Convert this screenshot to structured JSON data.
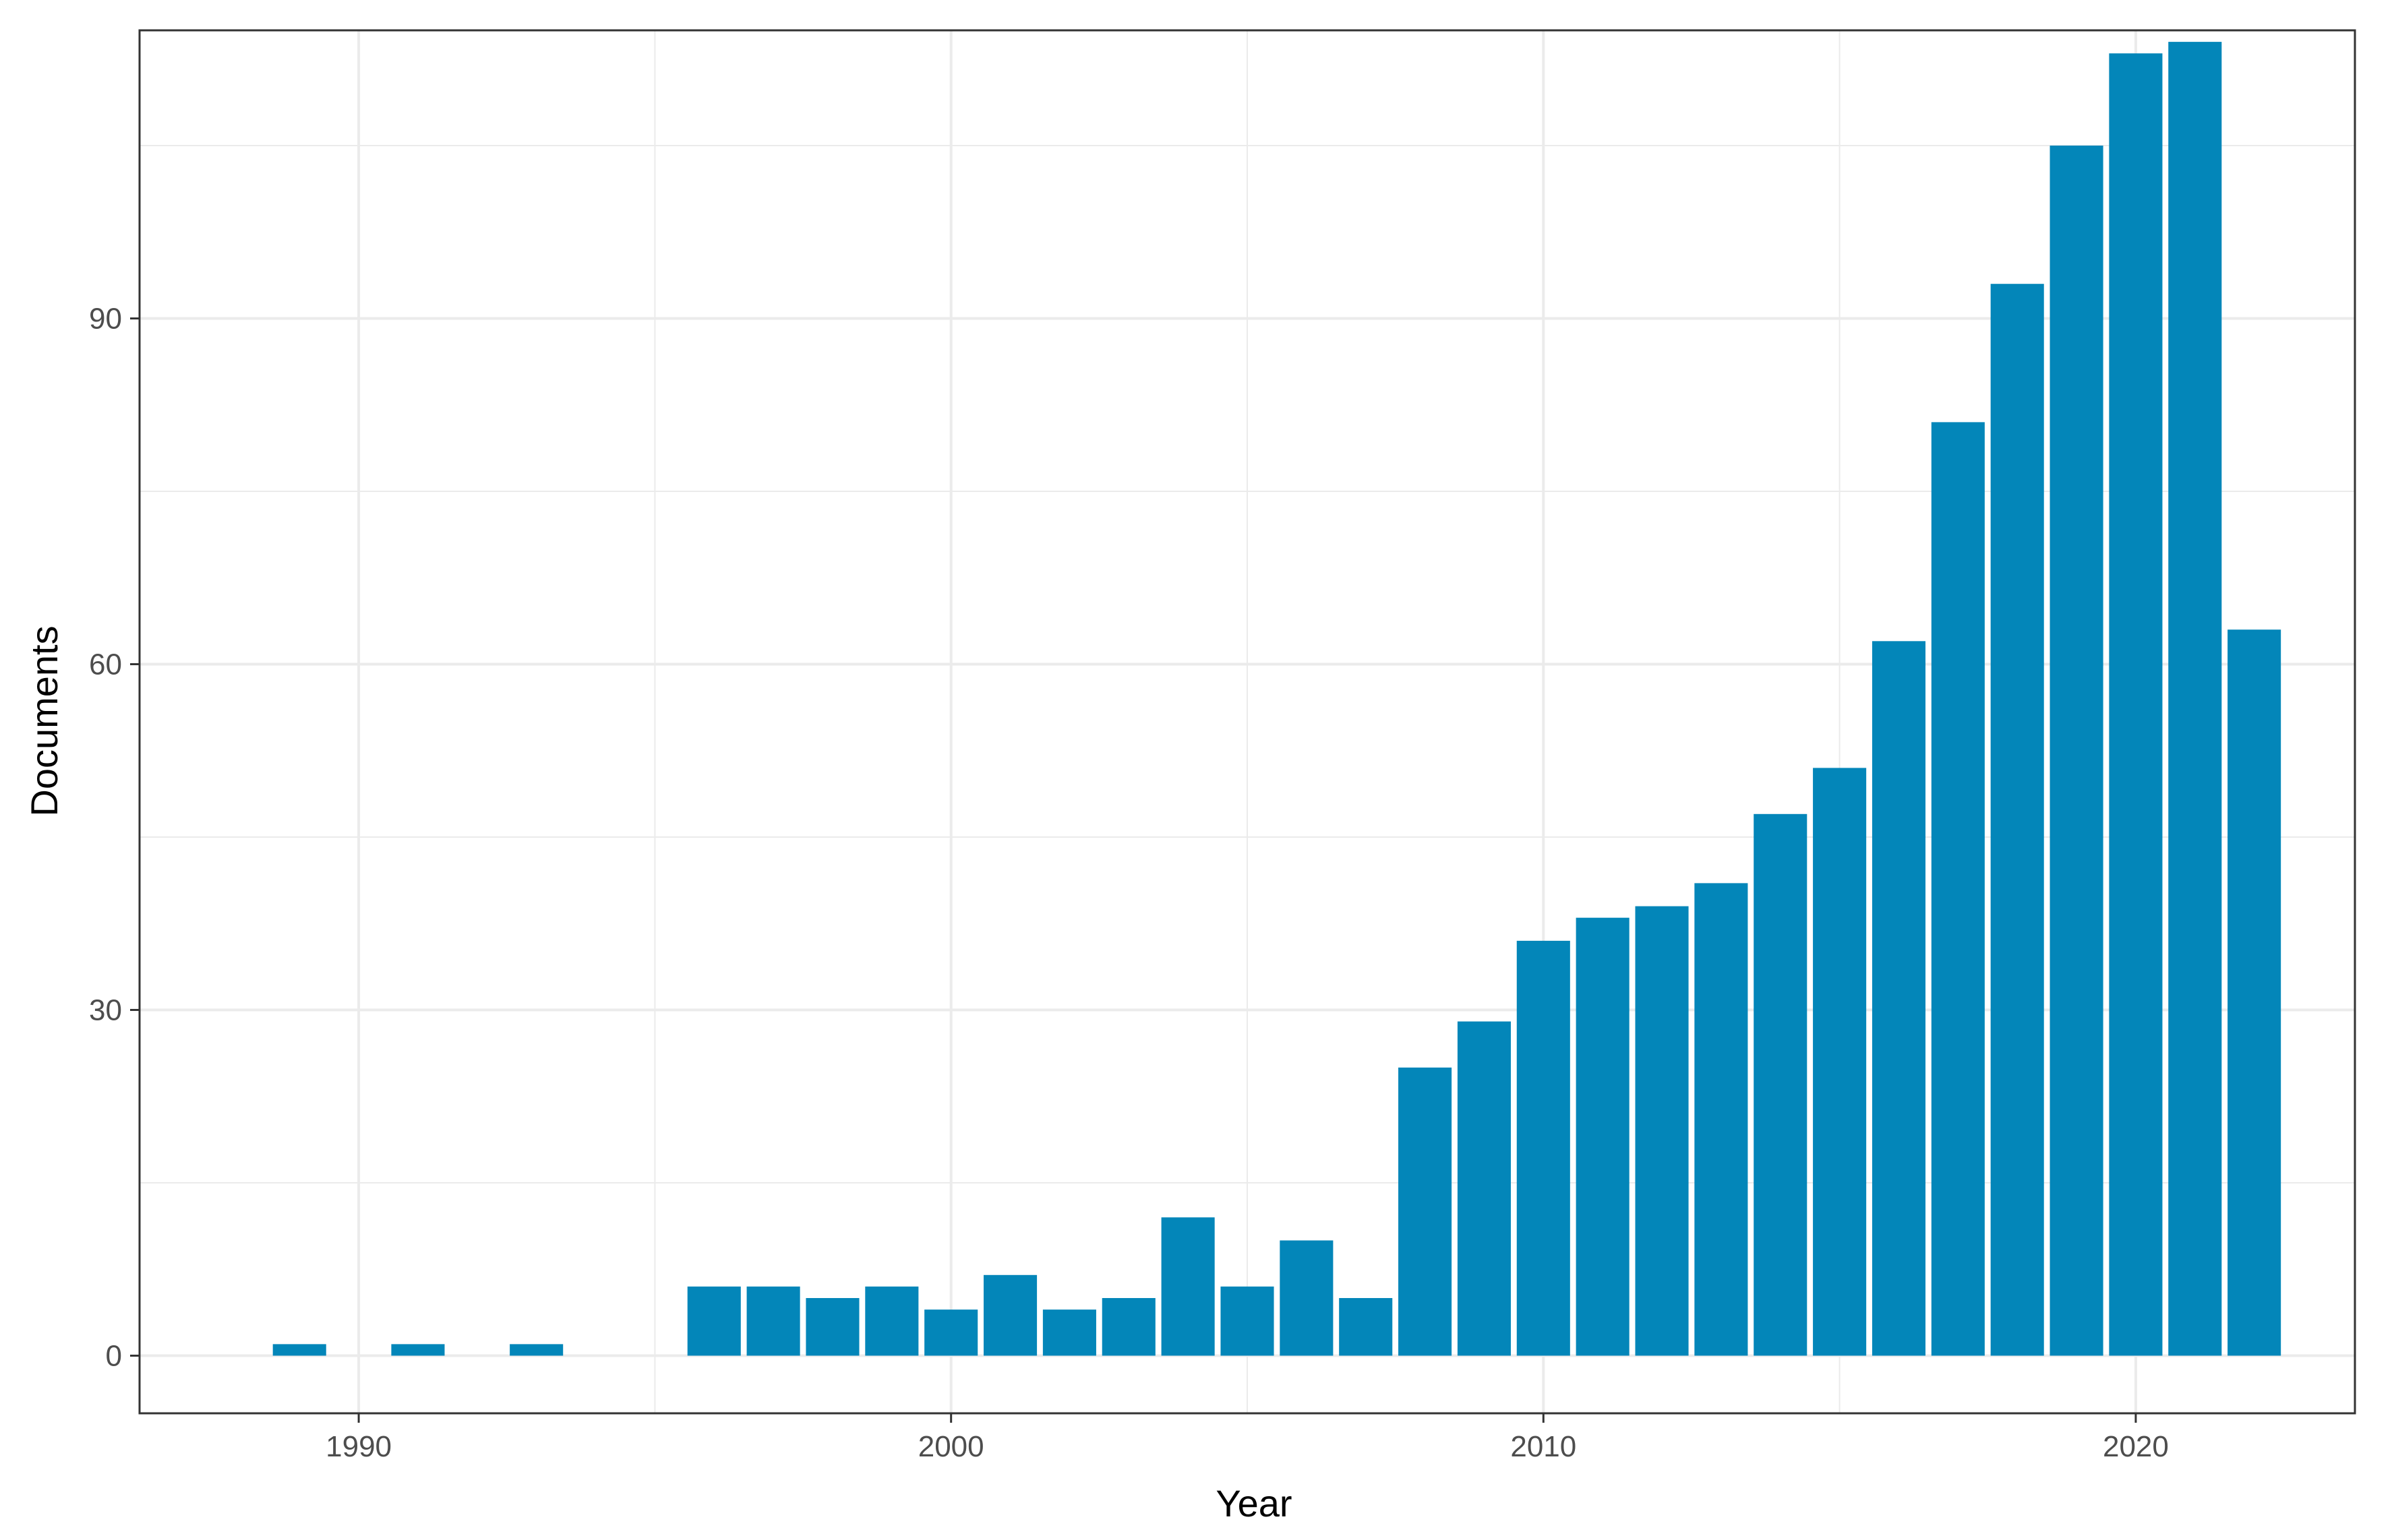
{
  "chart_data": {
    "type": "bar",
    "title": "",
    "xlabel": "Year",
    "ylabel": "Documents",
    "xlim": [
      1986.3,
      2023.7
    ],
    "ylim": [
      -5,
      115
    ],
    "xticks": [
      1990,
      2000,
      2010,
      2020
    ],
    "yticks": [
      0,
      30,
      60,
      90
    ],
    "x_minor_gridlines": [
      1995,
      2005,
      2015
    ],
    "y_minor_gridlines": [
      15,
      45,
      75,
      105
    ],
    "grid": true,
    "legend": "none",
    "colors": {
      "bar": "#0386B9",
      "panel_border": "#333333",
      "grid": "#EBEBEB"
    },
    "x": [
      1989,
      1991,
      1993,
      1996,
      1997,
      1998,
      1999,
      2000,
      2001,
      2002,
      2003,
      2004,
      2005,
      2006,
      2007,
      2008,
      2009,
      2010,
      2011,
      2012,
      2013,
      2014,
      2015,
      2016,
      2017,
      2018,
      2019,
      2020,
      2021,
      2022
    ],
    "values": [
      1,
      1,
      1,
      6,
      6,
      5,
      6,
      4,
      7,
      4,
      5,
      12,
      6,
      10,
      5,
      25,
      29,
      36,
      38,
      39,
      41,
      47,
      51,
      62,
      81,
      93,
      105,
      113,
      114,
      63
    ]
  }
}
